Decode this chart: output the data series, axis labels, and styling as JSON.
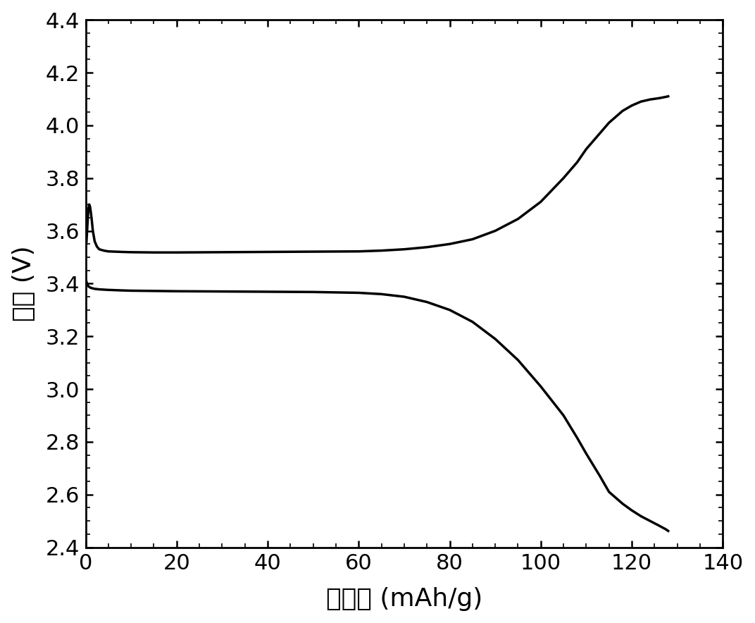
{
  "title": "",
  "xlabel": "比容量 (mAh/g)",
  "ylabel": "电压 (V)",
  "xlim": [
    0,
    140
  ],
  "ylim": [
    2.4,
    4.4
  ],
  "xticks": [
    0,
    20,
    40,
    60,
    80,
    100,
    120,
    140
  ],
  "yticks": [
    2.4,
    2.6,
    2.8,
    3.0,
    3.2,
    3.4,
    3.6,
    3.8,
    4.0,
    4.2,
    4.4
  ],
  "line_color": "#000000",
  "line_width": 2.5,
  "background_color": "#ffffff",
  "charge_curve": {
    "x": [
      0.0,
      0.2,
      0.4,
      0.6,
      0.8,
      1.0,
      1.3,
      1.6,
      2.0,
      2.5,
      3.0,
      4.0,
      5.0,
      8.0,
      10.0,
      15.0,
      20.0,
      30.0,
      40.0,
      50.0,
      60.0,
      65.0,
      70.0,
      75.0,
      80.0,
      85.0,
      90.0,
      95.0,
      100.0,
      105.0,
      108.0,
      110.0,
      113.0,
      115.0,
      118.0,
      120.0,
      122.0,
      124.0,
      126.0,
      127.5,
      128.0
    ],
    "y": [
      3.52,
      3.56,
      3.62,
      3.68,
      3.7,
      3.69,
      3.65,
      3.6,
      3.56,
      3.54,
      3.53,
      3.525,
      3.522,
      3.52,
      3.519,
      3.518,
      3.518,
      3.519,
      3.52,
      3.521,
      3.522,
      3.525,
      3.53,
      3.538,
      3.55,
      3.568,
      3.6,
      3.645,
      3.71,
      3.8,
      3.86,
      3.91,
      3.97,
      4.01,
      4.055,
      4.075,
      4.09,
      4.098,
      4.103,
      4.108,
      4.11
    ]
  },
  "discharge_curve": {
    "x": [
      0.0,
      0.3,
      0.6,
      1.0,
      1.5,
      2.0,
      3.0,
      5.0,
      8.0,
      10.0,
      15.0,
      20.0,
      30.0,
      40.0,
      50.0,
      60.0,
      65.0,
      70.0,
      75.0,
      80.0,
      85.0,
      90.0,
      95.0,
      100.0,
      105.0,
      108.0,
      110.0,
      113.0,
      115.0,
      118.0,
      120.0,
      122.0,
      124.0,
      126.0,
      127.5,
      128.0
    ],
    "y": [
      3.42,
      3.4,
      3.39,
      3.385,
      3.382,
      3.38,
      3.378,
      3.376,
      3.374,
      3.373,
      3.372,
      3.371,
      3.37,
      3.369,
      3.368,
      3.365,
      3.36,
      3.35,
      3.33,
      3.3,
      3.255,
      3.19,
      3.11,
      3.01,
      2.9,
      2.815,
      2.755,
      2.67,
      2.61,
      2.565,
      2.54,
      2.518,
      2.5,
      2.482,
      2.468,
      2.462
    ]
  }
}
